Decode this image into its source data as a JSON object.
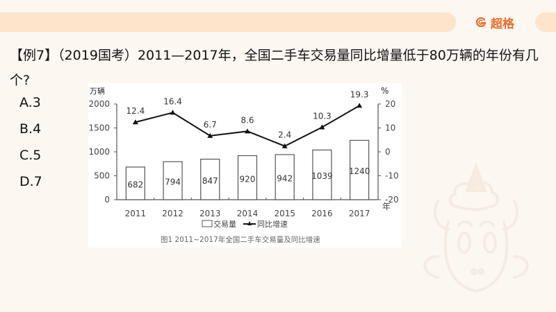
{
  "header": {
    "brand_name": "超格",
    "brand_color": "#ef6a2a",
    "band_color": "#fde4cb"
  },
  "question": {
    "text": "【例7】（2019国考）2011—2017年，全国二手车交易量同比增量低于80万辆的年份有几个?"
  },
  "options": [
    {
      "label": "A.3"
    },
    {
      "label": "B.4"
    },
    {
      "label": "C.5"
    },
    {
      "label": "D.7"
    }
  ],
  "chart_data": {
    "type": "bar",
    "title": "图1  2011~2017年全国二手车交易量及同比增速",
    "categories": [
      "2011",
      "2012",
      "2013",
      "2014",
      "2015",
      "2016",
      "2017"
    ],
    "xlabel": "年",
    "ylabel": "万辆",
    "ylabel_right": "%",
    "ylim": [
      0,
      2000
    ],
    "ylim_right": [
      -20,
      20
    ],
    "yticks": [
      0,
      500,
      1000,
      1500,
      2000
    ],
    "yticks_right": [
      -20,
      -10,
      0,
      10,
      20
    ],
    "legend_position": "bottom",
    "grid": false,
    "series": [
      {
        "name": "交易量",
        "type": "bar",
        "axis": "left",
        "values": [
          682,
          794,
          847,
          920,
          942,
          1039,
          1240
        ]
      },
      {
        "name": "同比增速",
        "type": "line",
        "axis": "right",
        "marker": "triangle",
        "values": [
          12.4,
          16.4,
          6.7,
          8.6,
          2.4,
          10.3,
          19.3
        ]
      }
    ]
  }
}
